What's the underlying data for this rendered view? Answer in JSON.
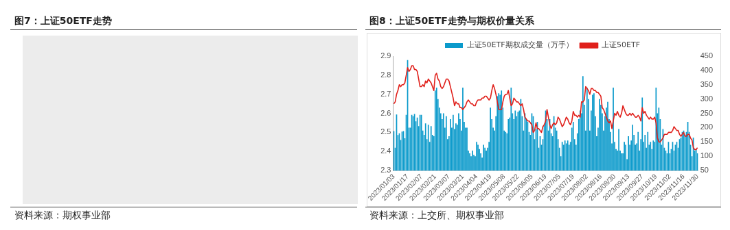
{
  "chart_data": [
    {
      "type": "other",
      "title": "图7：上证50ETF走势",
      "annotations": [
        "资料来源：期权事业部"
      ]
    },
    {
      "type": "bar",
      "title": "图8：上证50ETF走势与期权价量关系",
      "annotations": [
        "资料来源：上交所、期权事业部"
      ],
      "categories": [
        "2023/01/03",
        null,
        null,
        null,
        null,
        null,
        null,
        null,
        null,
        null,
        "2023/01/17",
        null,
        null,
        null,
        null,
        null,
        null,
        null,
        null,
        null,
        "2023/02/07",
        null,
        null,
        null,
        null,
        null,
        null,
        null,
        null,
        null,
        "2023/02/21",
        null,
        null,
        null,
        null,
        null,
        null,
        null,
        null,
        null,
        "2023/03/07",
        null,
        null,
        null,
        null,
        null,
        null,
        null,
        null,
        null,
        "2023/03/21",
        null,
        null,
        null,
        null,
        null,
        null,
        null,
        null,
        null,
        "2023/04/04",
        null,
        null,
        null,
        null,
        null,
        null,
        null,
        null,
        null,
        "2023/04/19",
        null,
        null,
        null,
        null,
        null,
        null,
        null,
        null,
        null,
        "2023/05/08",
        null,
        null,
        null,
        null,
        null,
        null,
        null,
        null,
        null,
        "2023/05/22",
        null,
        null,
        null,
        null,
        null,
        null,
        null,
        null,
        null,
        "2023/06/05",
        null,
        null,
        null,
        null,
        null,
        null,
        null,
        null,
        null,
        "2023/06/19",
        null,
        null,
        null,
        null,
        null,
        null,
        null,
        null,
        null,
        "2023/07/05",
        null,
        null,
        null,
        null,
        null,
        null,
        null,
        null,
        null,
        "2023/07/19",
        null,
        null,
        null,
        null,
        null,
        null,
        null,
        null,
        null,
        "2023/08/02",
        null,
        null,
        null,
        null,
        null,
        null,
        null,
        null,
        null,
        "2023/08/16",
        null,
        null,
        null,
        null,
        null,
        null,
        null,
        null,
        null,
        "2023/08/30",
        null,
        null,
        null,
        null,
        null,
        null,
        null,
        null,
        null,
        "2023/09/13",
        null,
        null,
        null,
        null,
        null,
        null,
        null,
        null,
        null,
        "2023/09/27",
        null,
        null,
        null,
        null,
        null,
        null,
        null,
        null,
        null,
        "2023/10/19",
        null,
        null,
        null,
        null,
        null,
        null,
        null,
        null,
        null,
        "2023/11/02",
        null,
        null,
        null,
        null,
        null,
        null,
        null,
        null,
        null,
        "2023/11/16",
        null,
        null,
        null,
        null,
        null,
        null,
        null,
        null,
        null,
        "2023/11/30"
      ],
      "series": [
        {
          "name": "上证50ETF期权成交量（万手）",
          "type": "bar",
          "axis": "y2",
          "color": "#0b9acb",
          "values": [
            188,
            130,
            246,
            174,
            180,
            157,
            186,
            188,
            163,
            245,
            436,
            200,
            200,
            245,
            240,
            248,
            222,
            235,
            205,
            245,
            245,
            190,
            175,
            215,
            160,
            210,
            150,
            205,
            175,
            170,
            330,
            340,
            300,
            270,
            250,
            230,
            250,
            200,
            240,
            160,
            170,
            230,
            200,
            245,
            195,
            215,
            210,
            250,
            230,
            190,
            340,
            220,
            200,
            200,
            120,
            110,
            100,
            120,
            105,
            100,
            150,
            140,
            125,
            110,
            95,
            140,
            130,
            120,
            130,
            150,
            270,
            230,
            200,
            190,
            240,
            310,
            320,
            315,
            330,
            270,
            190,
            185,
            180,
            230,
            235,
            340,
            250,
            230,
            260,
            240,
            255,
            260,
            300,
            240,
            190,
            250,
            230,
            220,
            185,
            175,
            250,
            240,
            160,
            195,
            220,
            130,
            170,
            140,
            160,
            210,
            260,
            230,
            190,
            230,
            180,
            170,
            240,
            200,
            190,
            160,
            130,
            100,
            150,
            140,
            155,
            145,
            155,
            140,
            150,
            200,
            220,
            160,
            140,
            180,
            230,
            260,
            250,
            380,
            280,
            190,
            340,
            300,
            190,
            260,
            315,
            320,
            240,
            170,
            200,
            300,
            280,
            250,
            190,
            240,
            270,
            290,
            230,
            185,
            145,
            340,
            150,
            125,
            120,
            195,
            120,
            110,
            110,
            150,
            140,
            90,
            170,
            140,
            155,
            210,
            175,
            140,
            145,
            185,
            120,
            160,
            305,
            150,
            175,
            130,
            185,
            140,
            150,
            125,
            155,
            150,
            340,
            250,
            270,
            230,
            140,
            195,
            130,
            120,
            110,
            150,
            110,
            125,
            150,
            120,
            140,
            150,
            130,
            160,
            165,
            185,
            190,
            175,
            185,
            220,
            185,
            140,
            100,
            165,
            120,
            125,
            110
          ]
        },
        {
          "name": "上证50ETF",
          "type": "line",
          "axis": "y",
          "color": "#e0201b",
          "values": [
            2.65,
            2.66,
            2.7,
            2.72,
            2.75,
            2.74,
            2.75,
            2.75,
            2.76,
            2.8,
            2.84,
            2.82,
            2.83,
            2.85,
            2.85,
            2.83,
            2.83,
            2.82,
            2.78,
            2.74,
            2.74,
            2.75,
            2.74,
            2.77,
            2.76,
            2.78,
            2.77,
            2.76,
            2.74,
            2.72,
            2.8,
            2.81,
            2.78,
            2.77,
            2.74,
            2.73,
            2.74,
            2.76,
            2.78,
            2.78,
            2.77,
            2.74,
            2.71,
            2.68,
            2.64,
            2.66,
            2.65,
            2.65,
            2.63,
            2.63,
            2.62,
            2.63,
            2.64,
            2.66,
            2.67,
            2.66,
            2.65,
            2.65,
            2.64,
            2.64,
            2.66,
            2.67,
            2.67,
            2.67,
            2.68,
            2.68,
            2.69,
            2.69,
            2.68,
            2.67,
            2.68,
            2.72,
            2.75,
            2.73,
            2.7,
            2.66,
            2.62,
            2.62,
            2.62,
            2.66,
            2.69,
            2.7,
            2.7,
            2.72,
            2.68,
            2.64,
            2.65,
            2.68,
            2.67,
            2.66,
            2.66,
            2.65,
            2.64,
            2.65,
            2.62,
            2.58,
            2.57,
            2.56,
            2.56,
            2.55,
            2.54,
            2.5,
            2.51,
            2.55,
            2.52,
            2.52,
            2.51,
            2.5,
            2.53,
            2.54,
            2.56,
            2.62,
            2.58,
            2.54,
            2.52,
            2.54,
            2.55,
            2.54,
            2.55,
            2.58,
            2.57,
            2.55,
            2.53,
            2.54,
            2.56,
            2.58,
            2.57,
            2.55,
            2.54,
            2.56,
            2.61,
            2.59,
            2.59,
            2.58,
            2.59,
            2.58,
            2.66,
            2.66,
            2.67,
            2.74,
            2.73,
            2.72,
            2.7,
            2.73,
            2.73,
            2.72,
            2.72,
            2.71,
            2.71,
            2.7,
            2.69,
            2.63,
            2.62,
            2.6,
            2.58,
            2.56,
            2.55,
            2.56,
            2.52,
            2.56,
            2.6,
            2.59,
            2.61,
            2.59,
            2.58,
            2.6,
            2.64,
            2.62,
            2.6,
            2.59,
            2.59,
            2.6,
            2.59,
            2.6,
            2.59,
            2.58,
            2.58,
            2.59,
            2.58,
            2.56,
            2.63,
            2.6,
            2.61,
            2.59,
            2.58,
            2.57,
            2.58,
            2.57,
            2.57,
            2.58,
            2.55,
            2.47,
            2.45,
            2.45,
            2.46,
            2.47,
            2.49,
            2.49,
            2.49,
            2.5,
            2.5,
            2.5,
            2.51,
            2.53,
            2.52,
            2.51,
            2.51,
            2.49,
            2.48,
            2.49,
            2.5,
            2.48,
            2.48,
            2.49,
            2.49,
            2.47,
            2.46,
            2.42,
            2.41,
            2.41,
            2.42
          ]
        }
      ],
      "ylim": [
        2.3,
        2.9
      ],
      "yticks": [
        2.3,
        2.4,
        2.5,
        2.6,
        2.7,
        2.8,
        2.9
      ],
      "y2lim": [
        50,
        450
      ],
      "y2ticks": [
        50,
        100,
        150,
        200,
        250,
        300,
        350,
        400,
        450
      ],
      "grid": false,
      "legend": "top",
      "marker": "none"
    }
  ]
}
